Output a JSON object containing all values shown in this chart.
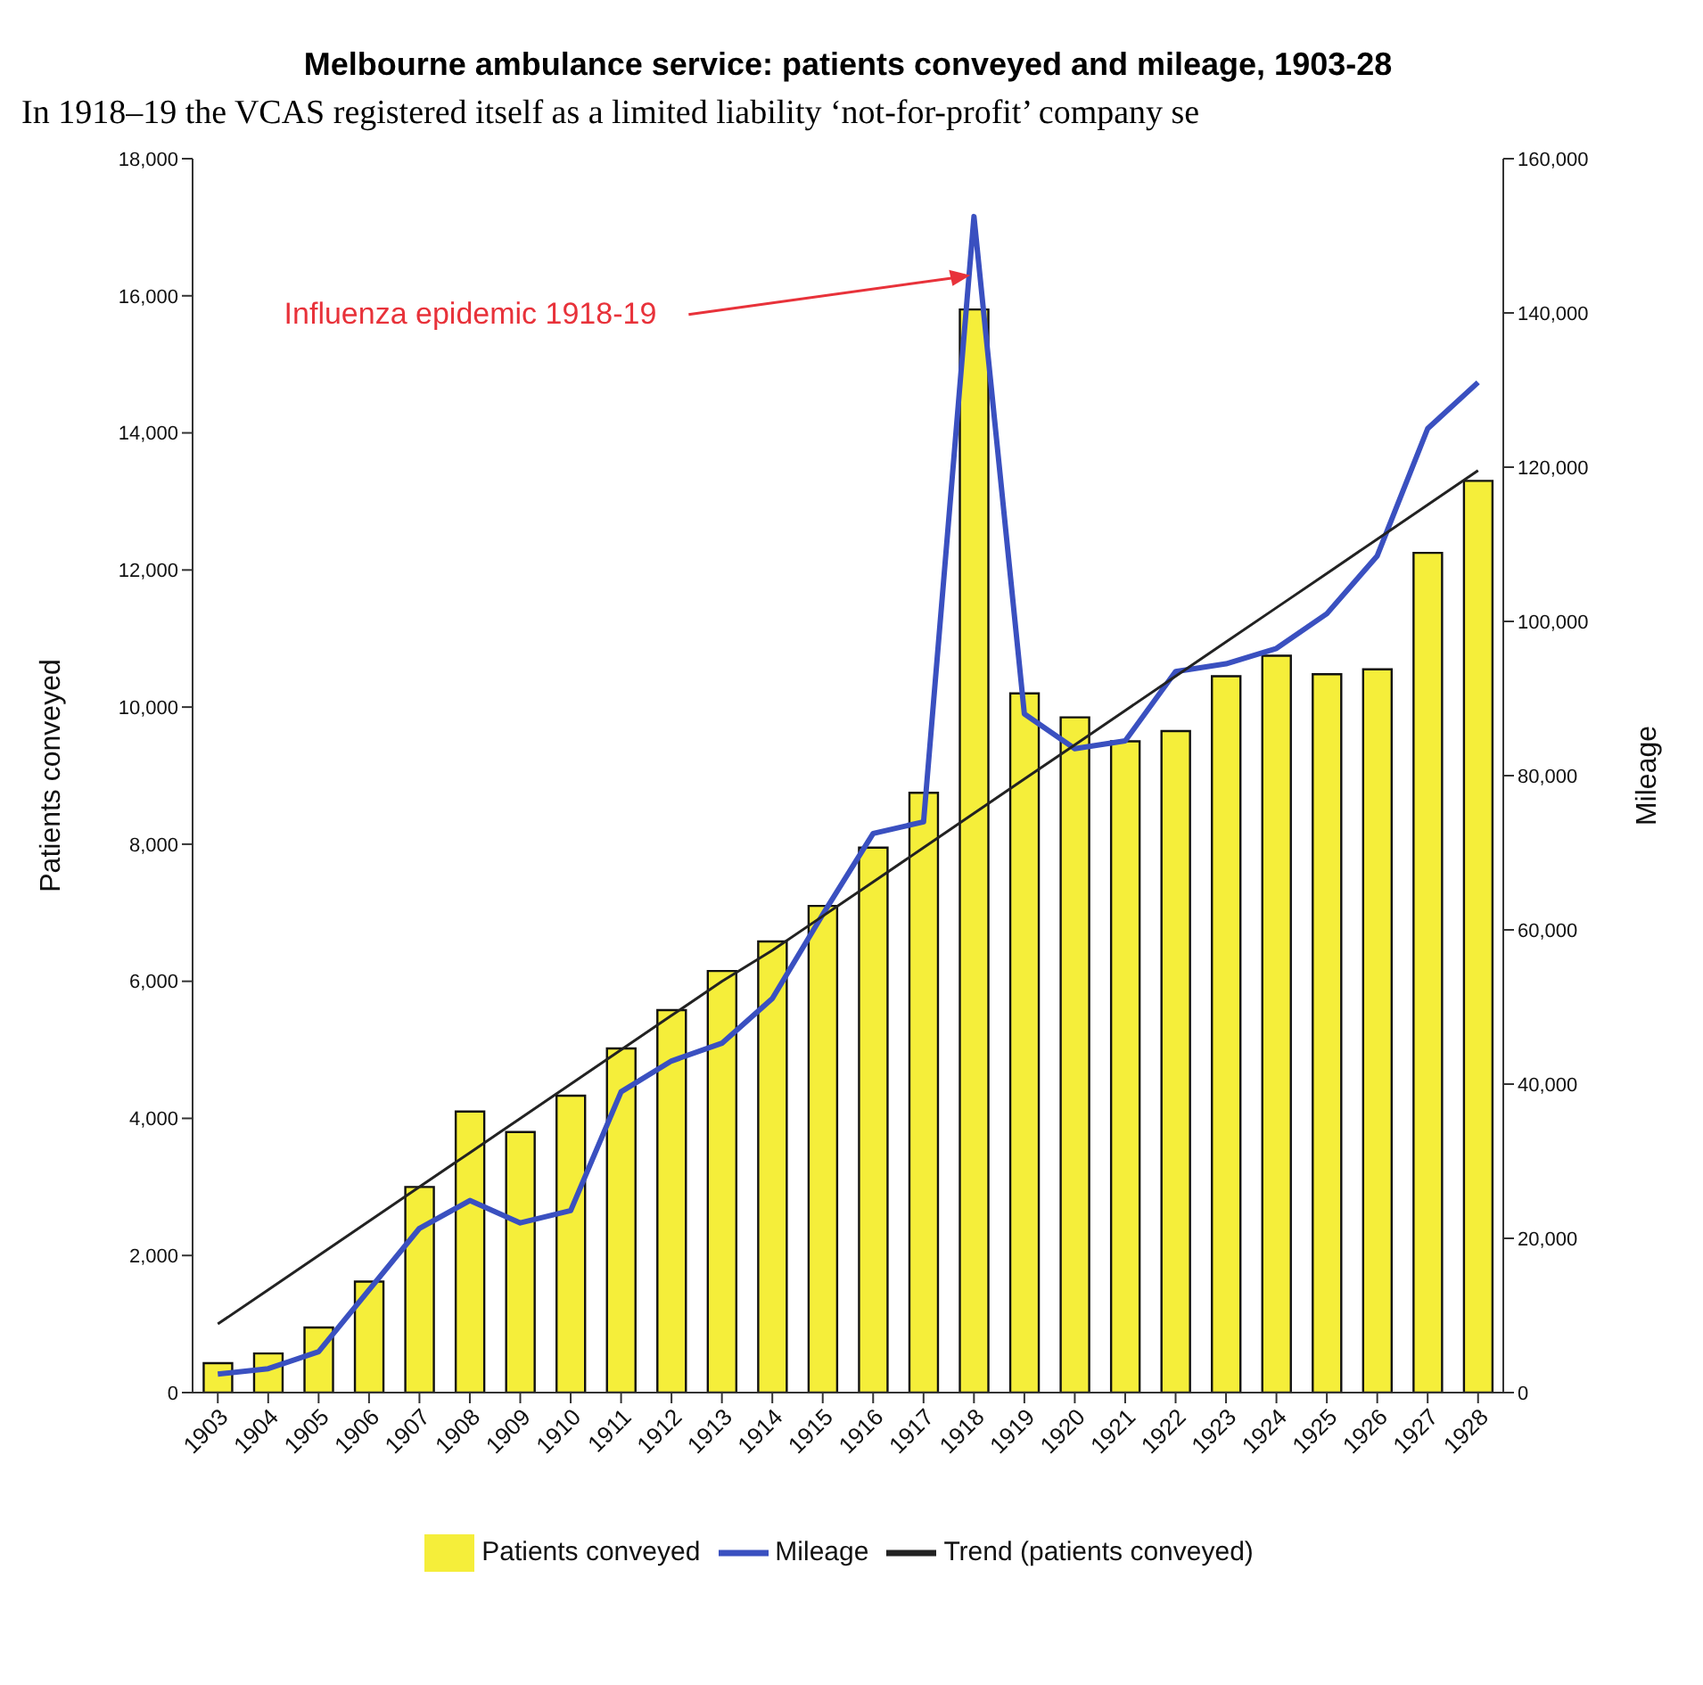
{
  "chart_data": {
    "type": "bar",
    "title": "Melbourne ambulance service: patients conveyed and mileage, 1903-28",
    "subtitle": "In 1918–19 the VCAS registered itself as a limited liability ‘not-for-profit’ company se",
    "ylabel": "Patients conveyed",
    "y2label": "Mileage",
    "categories": [
      "1903",
      "1904",
      "1905",
      "1906",
      "1907",
      "1908",
      "1909",
      "1910",
      "1911",
      "1912",
      "1913",
      "1914",
      "1915",
      "1916",
      "1917",
      "1918",
      "1919",
      "1920",
      "1921",
      "1922",
      "1923",
      "1924",
      "1925",
      "1926",
      "1927",
      "1928"
    ],
    "series": [
      {
        "name": "Patients conveyed",
        "color": "#f5ee3a",
        "values": [
          430,
          570,
          950,
          1620,
          3000,
          4100,
          3800,
          4330,
          5020,
          5580,
          6150,
          6580,
          7100,
          7950,
          8750,
          15800,
          10200,
          9850,
          9500,
          9650,
          10450,
          10750,
          10480,
          10550,
          12250,
          13300
        ]
      },
      {
        "name": "Mileage",
        "type": "line",
        "axis": "y2",
        "color": "#3a50c0",
        "values": [
          2400,
          3100,
          5300,
          13300,
          21300,
          24900,
          22000,
          23600,
          39000,
          43000,
          45300,
          51100,
          62000,
          72500,
          74000,
          152500,
          88000,
          83500,
          84500,
          93500,
          94500,
          96500,
          101000,
          108500,
          125000,
          131000
        ]
      },
      {
        "name": "Trend (patients conveyed)",
        "type": "line",
        "color": "#222222",
        "values": [
          1000,
          1500,
          2000,
          2500,
          3000,
          3500,
          4000,
          4500,
          5000,
          5500,
          6000,
          6450,
          6950,
          7450,
          7950,
          8450,
          8950,
          9450,
          9950,
          10450,
          10950,
          11450,
          11950,
          12450,
          12950,
          13450
        ]
      }
    ],
    "ylim": [
      0,
      18000
    ],
    "yticks": [
      {
        "value": 0,
        "label": "0"
      },
      {
        "value": 2000,
        "label": "2,000"
      },
      {
        "value": 4000,
        "label": "4,000"
      },
      {
        "value": 6000,
        "label": "6,000"
      },
      {
        "value": 8000,
        "label": "8,000"
      },
      {
        "value": 10000,
        "label": "10,000"
      },
      {
        "value": 12000,
        "label": "12,000"
      },
      {
        "value": 14000,
        "label": "14,000"
      },
      {
        "value": 16000,
        "label": "16,000"
      },
      {
        "value": 18000,
        "label": "18,000"
      }
    ],
    "y2lim": [
      0,
      160000
    ],
    "y2ticks": [
      {
        "value": 0,
        "label": "0"
      },
      {
        "value": 20000,
        "label": "20,000"
      },
      {
        "value": 40000,
        "label": "40,000"
      },
      {
        "value": 60000,
        "label": "60,000"
      },
      {
        "value": 80000,
        "label": "80,000"
      },
      {
        "value": 100000,
        "label": "100,000"
      },
      {
        "value": 120000,
        "label": "120,000"
      },
      {
        "value": 140000,
        "label": "140,000"
      },
      {
        "value": 160000,
        "label": "160,000"
      }
    ],
    "annotations": [
      {
        "text": "Influenza epidemic 1918-19",
        "x": "1918",
        "y": 16300
      }
    ],
    "grid": false,
    "legend": "bottom",
    "marker": "none",
    "line_style": "solid"
  }
}
